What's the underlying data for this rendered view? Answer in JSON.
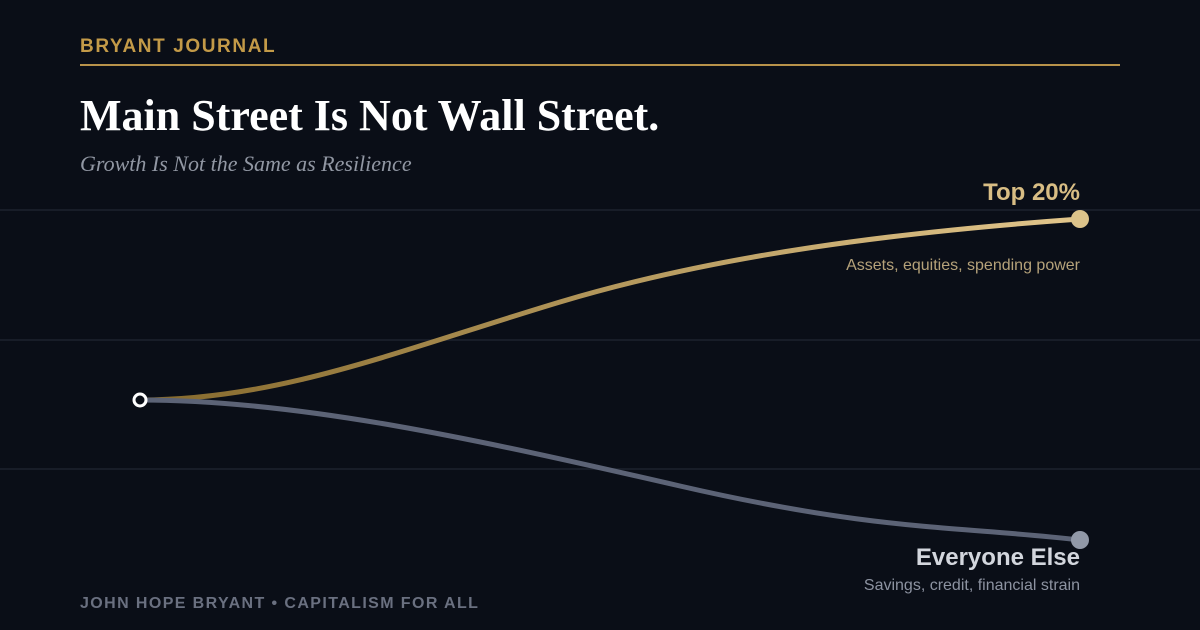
{
  "brand": "BRYANT JOURNAL",
  "title": "Main Street Is Not Wall Street.",
  "subtitle": "Growth Is Not the Same as Resilience",
  "paths": [
    {
      "label": "Top 20%",
      "description": "Assets, equities, spending power"
    },
    {
      "label": "Everyone Else",
      "description": "Savings, credit, financial strain"
    }
  ],
  "footer": "JOHN HOPE BRYANT • CAPITALISM FOR ALL"
}
